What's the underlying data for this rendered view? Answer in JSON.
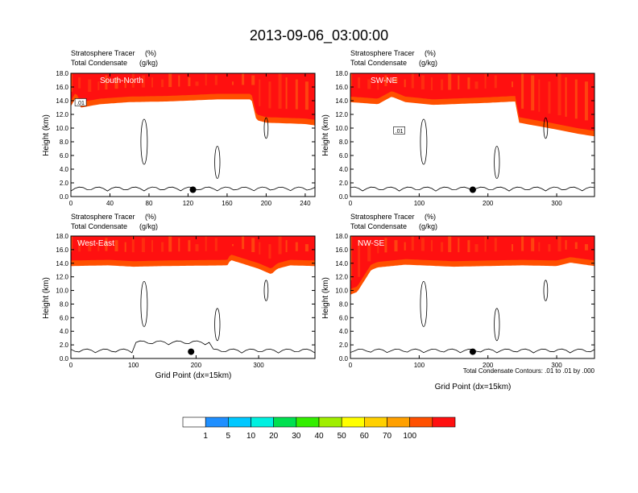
{
  "figure_title": "2013-09-06_03:00:00",
  "colorbar": {
    "levels": [
      "1",
      "5",
      "10",
      "20",
      "30",
      "40",
      "50",
      "60",
      "70",
      "100"
    ],
    "colors": [
      "#ffffff",
      "#1f8fff",
      "#00c8ff",
      "#00f0e0",
      "#00e050",
      "#33ee00",
      "#a0ee00",
      "#ffff00",
      "#ffd000",
      "#ffa000",
      "#ff5000",
      "#ff1010"
    ]
  },
  "contour_note": "Total Condensate Contours: .01 to .01 by .000",
  "chart_data": [
    {
      "type": "area",
      "panel_label": "South-North",
      "subtitle_left_1": "Stratosphere Tracer",
      "subtitle_unit_1": "(%)",
      "subtitle_left_2": "Total Condensate",
      "subtitle_unit_2": "(g/kg)",
      "ylabel": "Height (km)",
      "xlabel": "",
      "ylim": [
        0,
        18
      ],
      "yticks": [
        "0.0",
        "2.0",
        "4.0",
        "6.0",
        "8.0",
        "10.0",
        "12.0",
        "14.0",
        "16.0",
        "18.0"
      ],
      "xlim": [
        0,
        250
      ],
      "xticks": [
        "0",
        "40",
        "80",
        "120",
        "160",
        "200",
        "240"
      ],
      "contour_label": ".01",
      "marker_x": 125,
      "tropopause_x": [
        0,
        5,
        10,
        30,
        60,
        100,
        150,
        185,
        190,
        200,
        240,
        250
      ],
      "tropopause_y": [
        14.0,
        15.2,
        13.8,
        14.3,
        14.6,
        14.7,
        15.0,
        15.0,
        12.0,
        11.6,
        11.4,
        11.2
      ]
    },
    {
      "type": "area",
      "panel_label": "SW-NE",
      "subtitle_left_1": "Stratosphere Tracer",
      "subtitle_unit_1": "(%)",
      "subtitle_left_2": "Total Condensate",
      "subtitle_unit_2": "(g/kg)",
      "ylabel": "Height (km)",
      "xlabel": "",
      "ylim": [
        0,
        18
      ],
      "yticks": [
        "0.0",
        "2.0",
        "4.0",
        "6.0",
        "8.0",
        "10.0",
        "12.0",
        "14.0",
        "16.0",
        "18.0"
      ],
      "xlim": [
        0,
        355
      ],
      "xticks": [
        "0",
        "100",
        "200",
        "300"
      ],
      "contour_label": ".01",
      "marker_x": 178,
      "tropopause_x": [
        0,
        40,
        60,
        80,
        120,
        200,
        240,
        245,
        300,
        330,
        355
      ],
      "tropopause_y": [
        14.6,
        14.3,
        15.4,
        14.6,
        14.2,
        14.5,
        14.7,
        11.6,
        10.6,
        10.0,
        9.6
      ]
    },
    {
      "type": "area",
      "panel_label": "West-East",
      "subtitle_left_1": "Stratosphere Tracer",
      "subtitle_unit_1": "(%)",
      "subtitle_left_2": "Total Condensate",
      "subtitle_unit_2": "(g/kg)",
      "ylabel": "Height (km)",
      "xlabel": "Grid Point (dx=15km)",
      "ylim": [
        0,
        18
      ],
      "yticks": [
        "0.0",
        "2.0",
        "4.0",
        "6.0",
        "8.0",
        "10.0",
        "12.0",
        "14.0",
        "16.0",
        "18.0"
      ],
      "xlim": [
        0,
        390
      ],
      "xticks": [
        "0",
        "100",
        "200",
        "300"
      ],
      "contour_label": "",
      "marker_x": 192,
      "tropopause_x": [
        0,
        60,
        100,
        150,
        250,
        255,
        300,
        320,
        330,
        350,
        390
      ],
      "tropopause_y": [
        14.4,
        14.5,
        14.3,
        14.4,
        14.5,
        15.3,
        14.0,
        13.2,
        14.0,
        14.5,
        14.4
      ]
    },
    {
      "type": "area",
      "panel_label": "NW-SE",
      "subtitle_left_1": "Stratosphere Tracer",
      "subtitle_unit_1": "(%)",
      "subtitle_left_2": "Total Condensate",
      "subtitle_unit_2": "(g/kg)",
      "ylabel": "Height (km)",
      "xlabel": "Grid Point (dx=15km)",
      "ylim": [
        0,
        18
      ],
      "yticks": [
        "0.0",
        "2.0",
        "4.0",
        "6.0",
        "8.0",
        "10.0",
        "12.0",
        "14.0",
        "16.0",
        "18.0"
      ],
      "xlim": [
        0,
        355
      ],
      "xticks": [
        "0",
        "100",
        "200",
        "300"
      ],
      "contour_label": "",
      "marker_x": 178,
      "tropopause_x": [
        0,
        10,
        30,
        40,
        80,
        150,
        250,
        300,
        320,
        355
      ],
      "tropopause_y": [
        10.2,
        10.6,
        13.8,
        14.2,
        14.6,
        14.3,
        14.5,
        14.4,
        14.9,
        14.4
      ]
    }
  ]
}
